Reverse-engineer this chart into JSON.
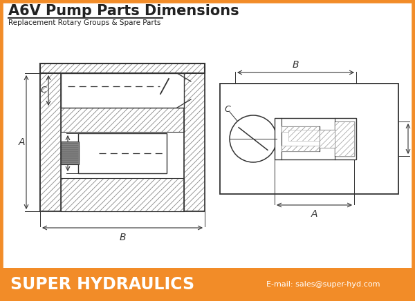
{
  "title": "A6V Pump Parts Dimensions",
  "subtitle": "Replacement Rotary Groups & Spare Parts",
  "footer_text": "SUPER HYDRAULICS",
  "footer_email": "E-mail: sales@super-hyd.com",
  "footer_bg": "#F28C28",
  "border_color": "#F28C28",
  "bg_color": "#FFFFFF",
  "line_color": "#333333",
  "label_color": "#222222"
}
